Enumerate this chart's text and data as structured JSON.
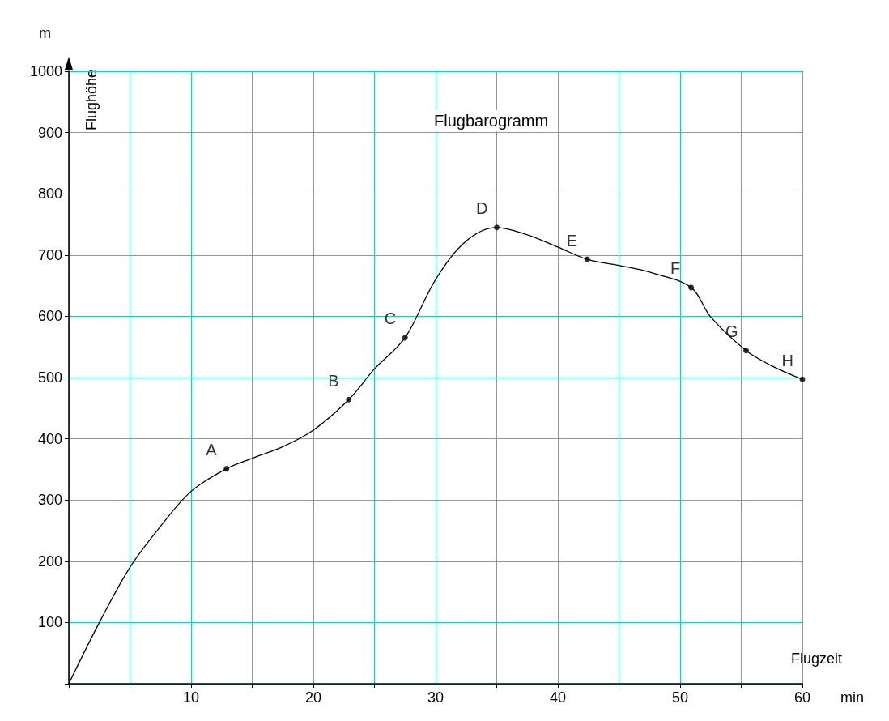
{
  "chart_data": {
    "type": "line",
    "title": "Flugbarogramm",
    "xlabel": "Flugzeit",
    "ylabel": "Flughöhe",
    "x": [
      0,
      2.5,
      5,
      7.5,
      10,
      12.9,
      15,
      17.5,
      20,
      22.9,
      25,
      27.5,
      30,
      32.5,
      35,
      37.5,
      40,
      42.4,
      45,
      47.5,
      50.9,
      52.5,
      55.4,
      57.5,
      60
    ],
    "series": [
      {
        "color": "#000000",
        "values": [
          0,
          100,
          190,
          257,
          314,
          351,
          368,
          387,
          414,
          464,
          514,
          565,
          660,
          723,
          745,
          733,
          713,
          693,
          683,
          672,
          647,
          599,
          544,
          519,
          497
        ]
      }
    ],
    "xlim": [
      0,
      60
    ],
    "ylim": [
      0,
      1000
    ],
    "xticks": [
      {
        "value": 0,
        "label": null
      },
      {
        "value": 5,
        "label": null
      },
      10,
      {
        "value": 15,
        "label": null
      },
      20,
      {
        "value": 25,
        "label": null
      },
      30,
      {
        "value": 35,
        "label": null
      },
      40,
      {
        "value": 45,
        "label": null
      },
      50,
      {
        "value": 55,
        "label": null
      },
      60
    ],
    "yticks": [
      {
        "value": 0,
        "label": null
      },
      100,
      200,
      300,
      400,
      500,
      600,
      700,
      800,
      900,
      1000
    ],
    "grid": true,
    "marker": "none",
    "line_style": "solid",
    "annotations": [
      "m",
      "min",
      {
        "text": "A",
        "x": 12.9,
        "y": 351
      },
      {
        "text": "B",
        "x": 22.9,
        "y": 464
      },
      {
        "text": "C",
        "x": 27.5,
        "y": 565
      },
      {
        "text": "D",
        "x": 35,
        "y": 745
      },
      {
        "text": "E",
        "x": 42.4,
        "y": 693
      },
      {
        "text": "F",
        "x": 50.9,
        "y": 647
      },
      {
        "text": "G",
        "x": 55.4,
        "y": 544
      },
      {
        "text": "H",
        "x": 60,
        "y": 497
      }
    ]
  }
}
